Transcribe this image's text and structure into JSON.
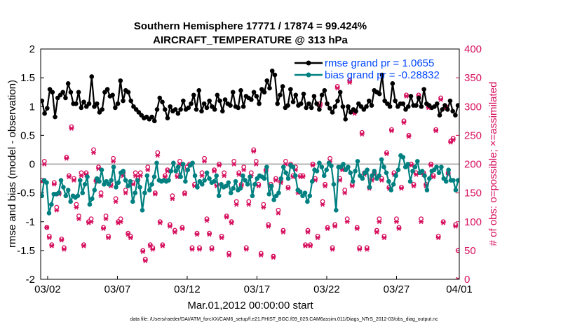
{
  "colors": {
    "rmse": "#000000",
    "bias": "#008080",
    "obs": "#d6115f",
    "zero_line": "#b4b4b4",
    "legend_text": "#0047ff"
  },
  "chart_data": {
    "type": "line",
    "title_line1": "Southern Hemisphere 17771 / 17874 = 99.424%",
    "title_line2": "AIRCRAFT_TEMPERATURE @ 313 hPa",
    "xlabel": "Mar.01,2012 00:00:00 start",
    "ylabel_left": "rmse and bias (model - observation)",
    "ylabel_right": "# of obs: o=possible; ×=assimilated",
    "footer": "data file: /Users/raeder/DAI/ATM_forcXX/CAM6_setup/f.e21.FHIST_BGC.f09_025.CAM6assim.011/Diags_NTrS_2012-03/obs_diag_output.nc",
    "xlim": [
      1.5,
      31.5
    ],
    "ylim_left": [
      -2,
      2
    ],
    "ylim_right": [
      0,
      400
    ],
    "x_ticks": [
      2,
      7,
      12,
      17,
      22,
      27,
      32
    ],
    "x_tick_labels": [
      "03/02",
      "03/07",
      "03/12",
      "03/17",
      "03/22",
      "03/27",
      "04/01"
    ],
    "y_left_ticks": [
      "-2",
      "-1.5",
      "-1",
      "-0.5",
      "0",
      "0.5",
      "1",
      "1.5",
      "2"
    ],
    "y_right_ticks": [
      "0",
      "50",
      "100",
      "150",
      "200",
      "250",
      "300",
      "350",
      "400"
    ],
    "legend": [
      "rmse grand pr = 1.0655",
      "bias grand pr = -0.28832"
    ],
    "series": [
      {
        "name": "rmse",
        "values": [
          1.1,
          0.88,
          0.97,
          1.3,
          1.25,
          0.82,
          1.15,
          1.2,
          1.25,
          1.15,
          1.4,
          1.25,
          1.05,
          1.05,
          1.25,
          0.98,
          1.08,
          1.0,
          1.05,
          1.52,
          1.0,
          1.05,
          0.9,
          0.95,
          1.25,
          1.3,
          1.18,
          1.2,
          0.98,
          1.05,
          1.45,
          1.1,
          1.28,
          1.25,
          1.1,
          1.0,
          0.95,
          0.9,
          0.85,
          0.8,
          0.82,
          0.78,
          0.82,
          0.75,
          0.95,
          1.15,
          1.08,
          0.95,
          0.8,
          1.0,
          0.92,
          0.95,
          0.88,
          0.95,
          1.1,
          0.95,
          0.98,
          1.05,
          1.2,
          0.95,
          1.28,
          0.92,
          1.05,
          0.98,
          1.1,
          1.0,
          0.95,
          1.2,
          1.1,
          0.92,
          1.12,
          1.05,
          1.02,
          1.25,
          1.0,
          0.98,
          1.28,
          1.0,
          1.18,
          1.15,
          1.12,
          1.25,
          1.18,
          1.05,
          1.3,
          1.25,
          1.45,
          1.32,
          1.62,
          1.55,
          1.05,
          1.2,
          1.35,
          0.98,
          1.02,
          1.3,
          1.08,
          1.2,
          1.02,
          1.05,
          1.22,
          0.98,
          1.05,
          0.98,
          1.18,
          1.05,
          0.95,
          1.2,
          1.28,
          1.05,
          0.97,
          0.9,
          1.0,
          1.1,
          1.25,
          1.0,
          0.78,
          1.0,
          0.9,
          0.95,
          0.92,
          1.05,
          1.0,
          0.95,
          1.0,
          1.1,
          1.02,
          1.28,
          1.25,
          1.22,
          1.55,
          1.1,
          1.05,
          1.0,
          1.4,
          1.1,
          1.0,
          1.05,
          1.05,
          0.95,
          1.0,
          1.18,
          1.02,
          1.02,
          1.15,
          1.0,
          1.3,
          1.05,
          1.02,
          0.98,
          1.0,
          1.05,
          0.85,
          0.95,
          1.02,
          0.95,
          1.1,
          0.92,
          0.85,
          1.02
        ]
      },
      {
        "name": "bias",
        "values": [
          -0.55,
          -0.28,
          -0.32,
          -0.85,
          -0.7,
          -0.52,
          -0.52,
          -0.5,
          -0.28,
          -0.4,
          -0.55,
          -0.45,
          -0.65,
          -0.55,
          -0.58,
          -0.55,
          -0.28,
          -0.5,
          -0.35,
          -0.22,
          -0.7,
          -0.6,
          -0.45,
          -0.25,
          -0.3,
          -0.1,
          -0.35,
          -0.3,
          -0.35,
          -0.28,
          -0.05,
          -0.4,
          -0.32,
          -0.15,
          -0.12,
          -0.28,
          -0.38,
          -0.3,
          -0.65,
          -0.5,
          -0.28,
          -0.4,
          -0.8,
          -0.5,
          -0.2,
          -0.45,
          -0.35,
          -0.22,
          0.02,
          -0.28,
          -0.3,
          -0.28,
          -0.3,
          -0.28,
          -0.12,
          0.02,
          -0.12,
          -0.05,
          -0.22,
          0.0,
          -0.3,
          -0.1,
          -0.02,
          0.02,
          -0.2,
          -0.4,
          -0.3,
          -0.35,
          -0.28,
          -0.15,
          -0.25,
          -0.32,
          -0.3,
          -0.2,
          -0.55,
          -0.35,
          -0.4,
          -0.38,
          -0.32,
          -0.5,
          -0.42,
          -0.3,
          -0.45,
          -0.42,
          -0.2,
          -0.28,
          -0.35,
          -0.22,
          -0.55,
          -0.35,
          -0.25,
          -0.2,
          -0.22,
          -0.25,
          -0.05,
          -0.52,
          -0.38,
          -0.62,
          -0.55,
          -0.5,
          -0.25,
          -0.05,
          -0.15,
          -0.25,
          -0.02,
          -0.05,
          -0.2,
          -0.45,
          -0.48,
          -0.55,
          -0.5,
          -0.65,
          -0.55,
          -0.3,
          -0.1,
          -0.12,
          0.02,
          -0.05,
          -0.2,
          -0.1,
          0.02,
          -0.03,
          -0.35,
          -0.8,
          -0.05,
          -0.05,
          0.0,
          -0.1,
          -0.05,
          -0.15,
          -0.3,
          -0.12,
          0.05,
          -0.2,
          -0.25,
          -0.15,
          -0.1,
          -0.4,
          -0.2,
          -0.12,
          -0.25,
          -0.2,
          0.08,
          -0.05,
          -0.15,
          -0.3,
          -0.45,
          -0.35,
          -0.2,
          -0.1,
          0.15,
          0.12,
          -0.05,
          0.0,
          -0.3,
          -0.12,
          -0.05,
          0.05,
          -0.15,
          -0.12,
          -0.2,
          -0.45,
          -0.25,
          -0.12,
          -0.1,
          -0.05,
          -0.15,
          -0.05,
          -0.25,
          -0.3,
          -0.1,
          -0.28,
          -0.28,
          -0.45,
          -0.28
        ]
      },
      {
        "name": "obs_possible",
        "values": [
          172,
          205,
          90,
          75,
          60,
          168,
          125,
          150,
          70,
          55,
          212,
          180,
          265,
          175,
          130,
          110,
          185,
          60,
          185,
          100,
          105,
          225,
          172,
          195,
          150,
          90,
          110,
          75,
          165,
          210,
          140,
          100,
          105,
          185,
          155,
          80,
          75,
          168,
          185,
          175,
          185,
          50,
          35,
          195,
          60,
          55,
          150,
          220,
          100,
          60,
          180,
          190,
          95,
          145,
          85,
          180,
          205,
          90,
          150,
          195,
          200,
          55,
          165,
          80,
          55,
          185,
          210,
          105,
          80,
          55,
          190,
          165,
          200,
          75,
          185,
          110,
          45,
          100,
          205,
          135,
          185,
          165,
          195,
          55,
          135,
          185,
          225,
          205,
          165,
          45,
          130,
          190,
          95,
          165,
          40,
          175,
          120,
          170,
          85,
          205,
          160,
          200,
          180,
          195,
          155,
          180,
          180,
          60,
          85,
          60,
          200,
          175,
          75,
          305,
          135,
          165,
          90,
          210,
          55,
          95,
          335,
          175,
          195,
          155,
          105,
          345,
          165,
          290,
          90,
          55,
          255,
          185,
          55,
          160,
          175,
          185,
          85,
          105,
          175,
          75,
          220,
          160,
          260,
          185,
          105,
          90,
          160,
          275,
          320,
          250,
          200,
          165,
          185,
          320,
          105,
          185,
          165,
          300,
          200,
          180,
          260,
          75,
          315,
          100,
          300,
          185,
          240,
          245,
          95,
          50
        ]
      },
      {
        "name": "obs_assimilated",
        "values": [
          170,
          200,
          90,
          72,
          58,
          165,
          120,
          148,
          68,
          52,
          210,
          178,
          262,
          172,
          125,
          105,
          180,
          58,
          182,
          98,
          100,
          220,
          170,
          192,
          145,
          88,
          105,
          72,
          162,
          205,
          135,
          98,
          100,
          180,
          150,
          78,
          72,
          165,
          180,
          172,
          180,
          48,
          32,
          190,
          58,
          52,
          148,
          215,
          98,
          58,
          178,
          188,
          92,
          140,
          82,
          178,
          200,
          88,
          148,
          190,
          198,
          52,
          162,
          78,
          52,
          180,
          205,
          102,
          78,
          52,
          188,
          162,
          198,
          72,
          180,
          108,
          42,
          98,
          200,
          130,
          182,
          162,
          190,
          52,
          130,
          180,
          222,
          200,
          162,
          42,
          125,
          188,
          92,
          162,
          38,
          172,
          115,
          168,
          82,
          200,
          158,
          198,
          178,
          190,
          150,
          178,
          178,
          58,
          82,
          58,
          198,
          172,
          72,
          302,
          130,
          162,
          88,
          205,
          52,
          92,
          332,
          172,
          190,
          150,
          100,
          342,
          162,
          288,
          88,
          52,
          252,
          182,
          52,
          158,
          172,
          182,
          82,
          100,
          172,
          72,
          218,
          158,
          258,
          182,
          100,
          88,
          158,
          272,
          318,
          248,
          198,
          162,
          182,
          318,
          100,
          182,
          162,
          298,
          198,
          178,
          258,
          72,
          312,
          98,
          298,
          182,
          238,
          242,
          92,
          0
        ]
      }
    ]
  }
}
